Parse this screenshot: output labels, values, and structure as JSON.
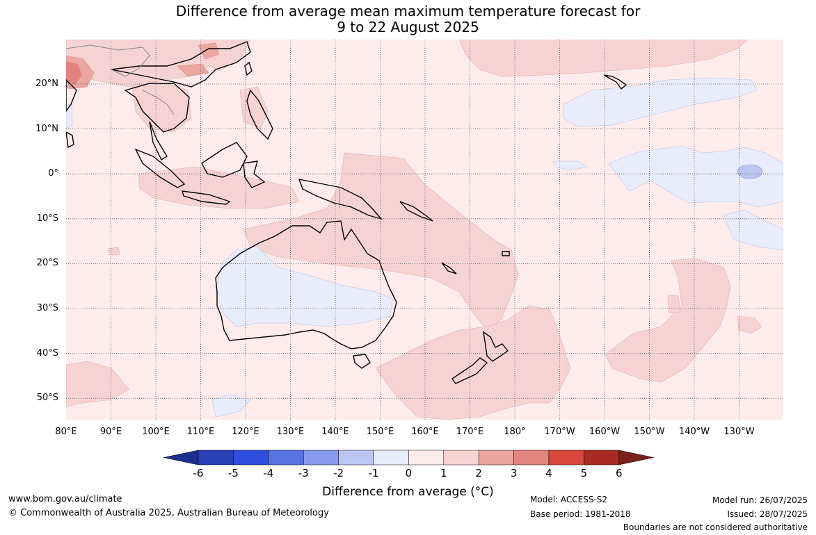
{
  "title_line1": "Difference from average mean maximum temperature forecast for",
  "title_line2": "9 to 22 August 2025",
  "lat_labels": [
    "20°N",
    "10°N",
    "0°",
    "10°S",
    "20°S",
    "30°S",
    "40°S",
    "50°S"
  ],
  "lon_labels": [
    "80°E",
    "90°E",
    "100°E",
    "110°E",
    "120°E",
    "130°E",
    "140°E",
    "150°E",
    "160°E",
    "170°E",
    "180°",
    "170°W",
    "160°W",
    "150°W",
    "140°W",
    "130°W"
  ],
  "colorbar": {
    "ticks": [
      "-6",
      "-5",
      "-4",
      "-3",
      "-2",
      "-1",
      "0",
      "1",
      "2",
      "3",
      "4",
      "5",
      "6"
    ],
    "colors": [
      "#1f2f8f",
      "#2a40b5",
      "#2e4fdd",
      "#5a73e3",
      "#8799ea",
      "#bcc6f3",
      "#e8ecfb",
      "#fdeceb",
      "#f6d3d1",
      "#eba6a2",
      "#e3837d",
      "#d7473c",
      "#a82a24",
      "#7a1f1a"
    ],
    "label": "Difference from average (°C)"
  },
  "footer": {
    "website": "www.bom.gov.au/climate",
    "copyright": "© Commonwealth of Australia 2025, Australian Bureau of Meteorology",
    "model": "Model: ACCESS-S2",
    "base_period": "Base period: 1981-2018",
    "model_run": "Model run: 26/07/2025",
    "issued": "Issued: 28/07/2025",
    "disclaimer": "Boundaries are not considered authoritative"
  }
}
